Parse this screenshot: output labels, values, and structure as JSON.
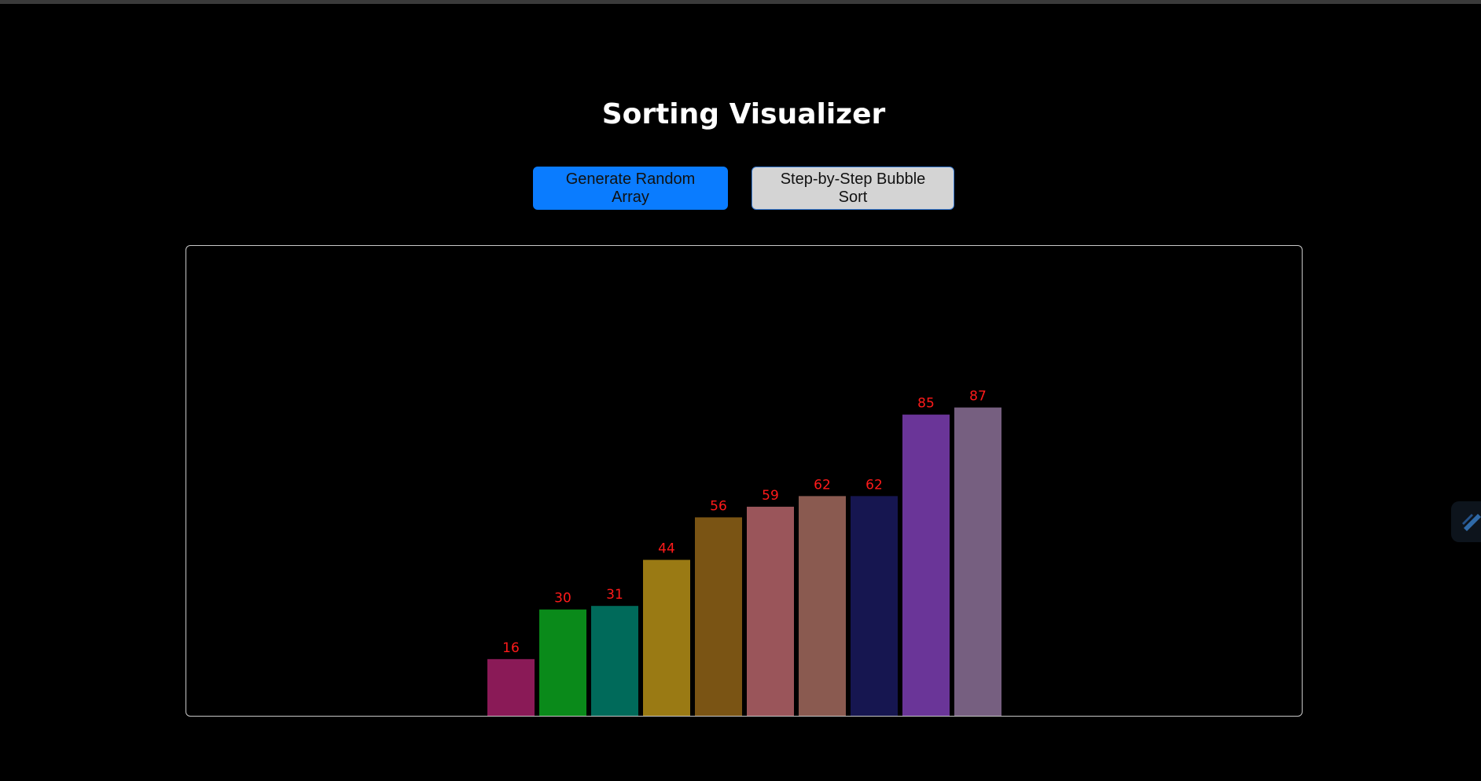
{
  "page": {
    "title": "Sorting Visualizer"
  },
  "controls": {
    "generate_label": "Generate Random Array",
    "bubble_label": "Step-by-Step Bubble Sort"
  },
  "colors": {
    "background": "#000000",
    "generate_button": "#0a7cff",
    "bubble_button": "#d4d4d4",
    "frame_border": "#c8c8c8",
    "value_label": "#ff1a1a"
  },
  "side_widget": {
    "icon": "wand-icon"
  },
  "chart_data": {
    "type": "bar",
    "title": "",
    "xlabel": "",
    "ylabel": "",
    "ylim": [
      0,
      100
    ],
    "grid": false,
    "values": [
      16,
      30,
      31,
      44,
      56,
      59,
      62,
      62,
      85,
      87
    ],
    "bar_colors": [
      "#8a1a57",
      "#0a8a1a",
      "#006a5a",
      "#9a7a14",
      "#7a5414",
      "#9a555a",
      "#8a5a50",
      "#161650",
      "#6a3598",
      "#765f80"
    ]
  }
}
